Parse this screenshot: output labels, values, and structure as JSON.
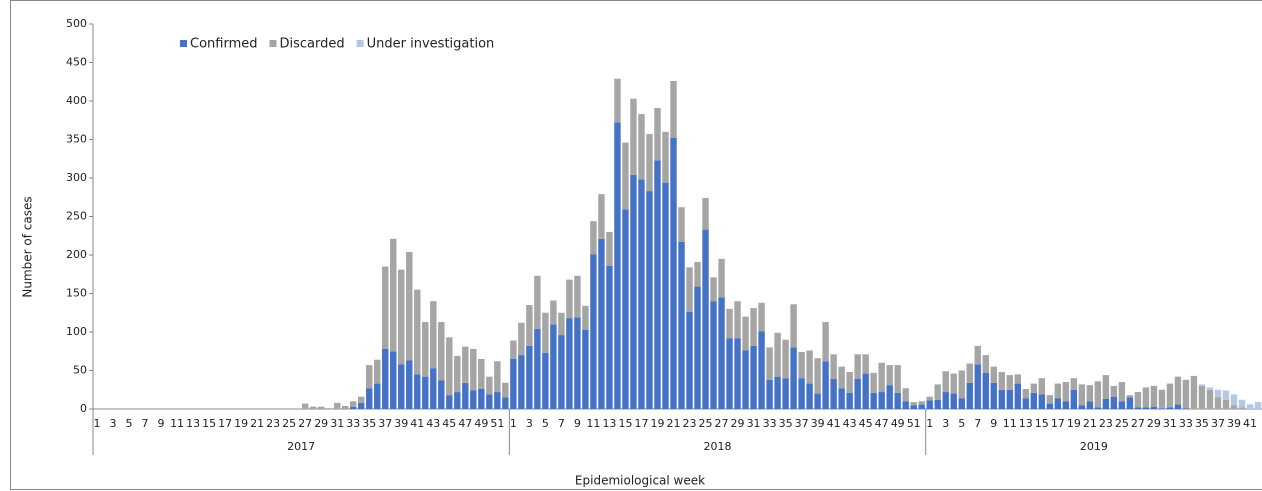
{
  "chart_data": {
    "type": "stacked_bar",
    "y_label": "Number of cases",
    "x_label": "Epidemiological week",
    "ylim": [
      0,
      500
    ],
    "yticks": [
      0,
      50,
      100,
      150,
      200,
      250,
      300,
      350,
      400,
      450,
      500
    ],
    "grid": false,
    "legend": "top-left",
    "groups": [
      {
        "label": "2017",
        "categories": [
          1,
          null,
          3,
          null,
          5,
          null,
          7,
          null,
          9,
          null,
          11,
          null,
          13,
          null,
          15,
          null,
          17,
          null,
          19,
          null,
          21,
          null,
          23,
          null,
          25,
          null,
          27,
          null,
          29,
          null,
          31,
          null,
          33,
          null,
          35,
          null,
          37,
          null,
          39,
          null,
          41,
          null,
          43,
          null,
          45,
          null,
          47,
          null,
          49,
          null,
          51,
          null
        ]
      },
      {
        "label": "2018",
        "categories": [
          1,
          null,
          3,
          null,
          5,
          null,
          7,
          null,
          9,
          null,
          11,
          null,
          13,
          null,
          15,
          null,
          17,
          null,
          19,
          null,
          21,
          null,
          23,
          null,
          25,
          null,
          27,
          null,
          29,
          null,
          31,
          null,
          33,
          null,
          35,
          null,
          37,
          null,
          39,
          null,
          41,
          null,
          43,
          null,
          45,
          null,
          47,
          null,
          49,
          null,
          51,
          null
        ]
      },
      {
        "label": "2019",
        "categories": [
          1,
          null,
          3,
          null,
          5,
          null,
          7,
          null,
          9,
          null,
          11,
          null,
          13,
          null,
          15,
          null,
          17,
          null,
          19,
          null,
          21,
          null,
          23,
          null,
          25,
          null,
          27,
          null,
          29,
          null,
          31,
          null,
          33,
          null,
          35,
          null,
          37,
          null,
          39,
          null,
          41,
          null
        ]
      }
    ],
    "series": [
      {
        "name": "Confirmed",
        "color": "#4472c4",
        "values": [
          0,
          0,
          0,
          0,
          0,
          0,
          0,
          0,
          0,
          0,
          0,
          0,
          0,
          0,
          0,
          0,
          0,
          0,
          0,
          0,
          0,
          0,
          0,
          0,
          0,
          0,
          0,
          0,
          0,
          0,
          0,
          0,
          3,
          8,
          27,
          33,
          78,
          75,
          58,
          63,
          45,
          42,
          53,
          37,
          18,
          22,
          34,
          24,
          26,
          19,
          22,
          15,
          65,
          70,
          82,
          104,
          73,
          110,
          96,
          118,
          119,
          103,
          201,
          221,
          186,
          372,
          259,
          304,
          298,
          283,
          323,
          294,
          352,
          217,
          126,
          159,
          233,
          140,
          145,
          92,
          92,
          76,
          82,
          101,
          38,
          42,
          40,
          80,
          40,
          33,
          20,
          62,
          39,
          27,
          21,
          39,
          46,
          21,
          22,
          31,
          21,
          10,
          5,
          6,
          11,
          12,
          22,
          20,
          14,
          34,
          58,
          47,
          34,
          25,
          25,
          33,
          14,
          21,
          19,
          7,
          14,
          10,
          25,
          5,
          10,
          2,
          13,
          16,
          10,
          15,
          2,
          2,
          3,
          1,
          2,
          6,
          1,
          0,
          0,
          0,
          0,
          0,
          0,
          0,
          0,
          0
        ]
      },
      {
        "name": "Discarded",
        "color": "#a5a5a5",
        "values": [
          0,
          0,
          0,
          0,
          0,
          0,
          0,
          0,
          0,
          0,
          0,
          0,
          0,
          0,
          0,
          0,
          0,
          0,
          0,
          0,
          0,
          0,
          0,
          0,
          0,
          0,
          7,
          3,
          3,
          1,
          8,
          4,
          7,
          8,
          30,
          31,
          107,
          146,
          123,
          141,
          110,
          71,
          87,
          76,
          75,
          47,
          47,
          54,
          39,
          23,
          40,
          19,
          24,
          42,
          53,
          69,
          52,
          31,
          29,
          50,
          54,
          31,
          43,
          58,
          44,
          57,
          87,
          99,
          85,
          74,
          68,
          66,
          74,
          45,
          58,
          32,
          41,
          31,
          50,
          38,
          48,
          44,
          49,
          37,
          42,
          57,
          50,
          56,
          34,
          43,
          46,
          51,
          32,
          28,
          27,
          32,
          25,
          26,
          38,
          26,
          36,
          17,
          4,
          4,
          5,
          20,
          27,
          26,
          36,
          25,
          24,
          23,
          21,
          23,
          19,
          12,
          12,
          12,
          21,
          11,
          19,
          25,
          15,
          27,
          21,
          34,
          31,
          14,
          25,
          3,
          20,
          26,
          27,
          24,
          31,
          36,
          37,
          43,
          30,
          25,
          15,
          12,
          5,
          2,
          0,
          0
        ]
      },
      {
        "name": "Under investigation",
        "color": "#b4c7e7",
        "values": [
          0,
          0,
          0,
          0,
          0,
          0,
          0,
          0,
          0,
          0,
          0,
          0,
          0,
          0,
          0,
          0,
          0,
          0,
          0,
          0,
          0,
          0,
          0,
          0,
          0,
          0,
          0,
          0,
          0,
          0,
          0,
          0,
          0,
          0,
          0,
          0,
          0,
          0,
          0,
          0,
          0,
          0,
          0,
          0,
          0,
          0,
          0,
          0,
          0,
          0,
          0,
          0,
          0,
          0,
          0,
          0,
          0,
          0,
          0,
          0,
          0,
          0,
          0,
          0,
          0,
          0,
          0,
          0,
          0,
          0,
          0,
          0,
          0,
          0,
          0,
          0,
          0,
          0,
          0,
          0,
          0,
          0,
          0,
          0,
          0,
          0,
          0,
          0,
          0,
          0,
          0,
          0,
          0,
          0,
          0,
          0,
          0,
          0,
          0,
          0,
          0,
          0,
          0,
          0,
          0,
          0,
          0,
          0,
          0,
          0,
          0,
          0,
          0,
          0,
          0,
          0,
          0,
          0,
          0,
          0,
          0,
          0,
          0,
          0,
          0,
          0,
          0,
          0,
          0,
          0,
          0,
          0,
          0,
          0,
          0,
          0,
          0,
          0,
          2,
          3,
          10,
          12,
          14,
          10,
          6,
          9
        ]
      }
    ]
  }
}
